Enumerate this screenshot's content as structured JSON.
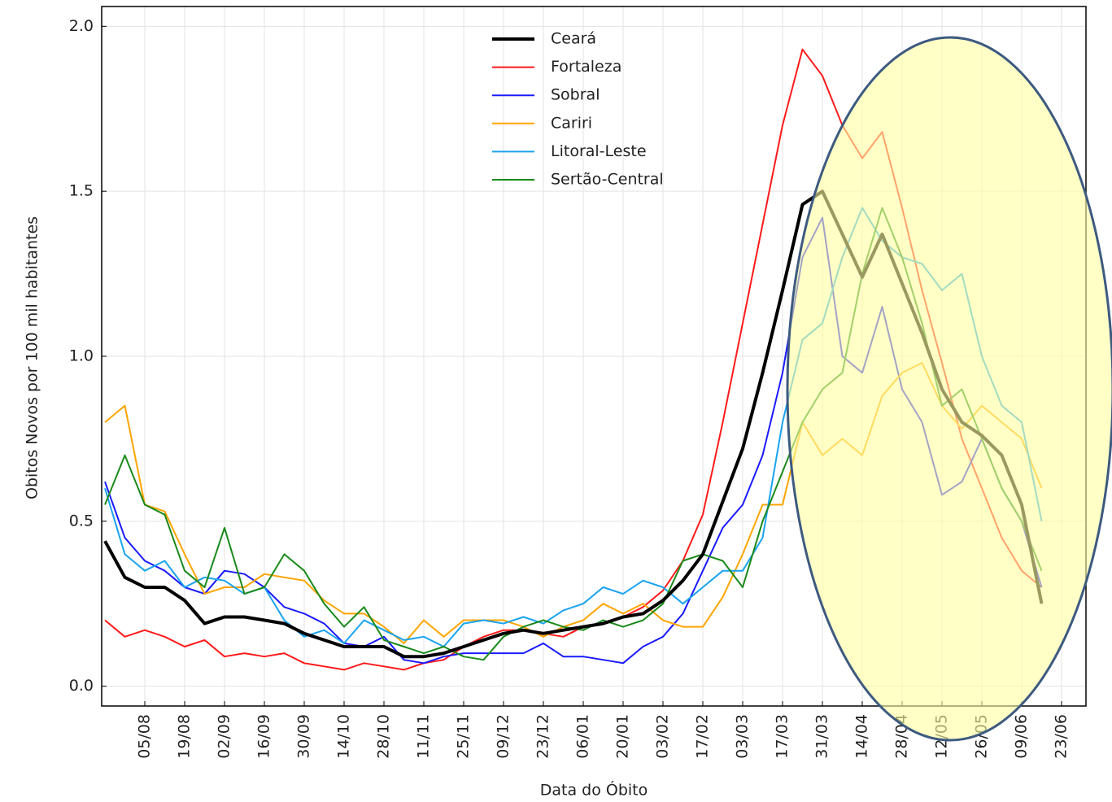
{
  "chart_data": {
    "type": "line",
    "x_label": "Data do Óbito",
    "y_label": "Obitos Novos por 100 mil habitantes",
    "categories": [
      null,
      null,
      "05/08",
      null,
      "19/08",
      null,
      "02/09",
      null,
      "16/09",
      null,
      "30/09",
      null,
      "14/10",
      null,
      "28/10",
      null,
      "11/11",
      null,
      "25/11",
      null,
      "09/12",
      null,
      "23/12",
      null,
      "06/01",
      null,
      "20/01",
      null,
      "03/02",
      null,
      "17/02",
      null,
      "03/03",
      null,
      "17/03",
      null,
      "31/03",
      null,
      "14/04",
      null,
      "28/04",
      null,
      "12/05",
      null,
      "26/05",
      null,
      "09/06",
      null,
      "23/06"
    ],
    "series": [
      {
        "name": "Ceará",
        "color": "#000000",
        "values": [
          0.44,
          0.33,
          0.3,
          0.3,
          0.26,
          0.19,
          0.21,
          0.21,
          0.2,
          0.19,
          0.16,
          0.14,
          0.12,
          0.12,
          0.12,
          0.09,
          0.09,
          0.1,
          0.12,
          0.14,
          0.16,
          0.17,
          0.16,
          0.17,
          0.18,
          0.19,
          0.21,
          0.22,
          0.26,
          0.32,
          0.4,
          0.56,
          0.72,
          0.95,
          1.2,
          1.46,
          1.5,
          1.37,
          1.24,
          1.37,
          1.22,
          1.07,
          0.9,
          0.8,
          0.76,
          0.7,
          0.55,
          0.25,
          null
        ]
      },
      {
        "name": "Fortaleza",
        "color": "#ff1a1a",
        "values": [
          0.2,
          0.15,
          0.17,
          0.15,
          0.12,
          0.14,
          0.09,
          0.1,
          0.09,
          0.1,
          0.07,
          0.06,
          0.05,
          0.07,
          0.06,
          0.05,
          0.07,
          0.08,
          0.12,
          0.15,
          0.17,
          0.17,
          0.16,
          0.15,
          0.18,
          0.19,
          0.21,
          0.24,
          0.29,
          0.38,
          0.52,
          0.8,
          1.1,
          1.4,
          1.7,
          1.93,
          1.85,
          1.7,
          1.6,
          1.68,
          1.45,
          1.2,
          0.98,
          0.75,
          0.6,
          0.45,
          0.35,
          0.3,
          null
        ]
      },
      {
        "name": "Sobral",
        "color": "#1a1aff",
        "values": [
          0.62,
          0.45,
          0.38,
          0.35,
          0.3,
          0.28,
          0.35,
          0.34,
          0.3,
          0.24,
          0.22,
          0.19,
          0.13,
          0.12,
          0.15,
          0.08,
          0.07,
          0.09,
          0.1,
          0.1,
          0.1,
          0.1,
          0.13,
          0.09,
          0.09,
          0.08,
          0.07,
          0.12,
          0.15,
          0.22,
          0.35,
          0.48,
          0.55,
          0.7,
          0.95,
          1.3,
          1.42,
          1.0,
          0.95,
          1.15,
          0.9,
          0.8,
          0.58,
          0.62,
          0.75,
          0.6,
          0.5,
          0.3,
          null
        ]
      },
      {
        "name": "Cariri",
        "color": "#ffa500",
        "values": [
          0.8,
          0.85,
          0.55,
          0.53,
          0.4,
          0.28,
          0.3,
          0.3,
          0.34,
          0.33,
          0.32,
          0.26,
          0.22,
          0.22,
          0.18,
          0.13,
          0.2,
          0.15,
          0.2,
          0.2,
          0.2,
          0.18,
          0.15,
          0.18,
          0.2,
          0.25,
          0.22,
          0.25,
          0.2,
          0.18,
          0.18,
          0.27,
          0.4,
          0.55,
          0.55,
          0.8,
          0.7,
          0.75,
          0.7,
          0.88,
          0.95,
          0.98,
          0.85,
          0.78,
          0.85,
          0.8,
          0.75,
          0.6,
          null
        ]
      },
      {
        "name": "Litoral-Leste",
        "color": "#1aa3ef",
        "values": [
          0.6,
          0.4,
          0.35,
          0.38,
          0.3,
          0.33,
          0.32,
          0.28,
          0.3,
          0.2,
          0.15,
          0.17,
          0.13,
          0.2,
          0.17,
          0.14,
          0.15,
          0.12,
          0.19,
          0.2,
          0.19,
          0.21,
          0.19,
          0.23,
          0.25,
          0.3,
          0.28,
          0.32,
          0.3,
          0.25,
          0.3,
          0.35,
          0.35,
          0.45,
          0.8,
          1.05,
          1.1,
          1.3,
          1.45,
          1.35,
          1.3,
          1.28,
          1.2,
          1.25,
          1.0,
          0.85,
          0.8,
          0.5,
          null
        ]
      },
      {
        "name": "Sertão-Central",
        "color": "#1a8a1a",
        "values": [
          0.55,
          0.7,
          0.55,
          0.52,
          0.35,
          0.3,
          0.48,
          0.28,
          0.3,
          0.4,
          0.35,
          0.25,
          0.18,
          0.24,
          0.14,
          0.12,
          0.1,
          0.12,
          0.09,
          0.08,
          0.15,
          0.18,
          0.2,
          0.18,
          0.17,
          0.2,
          0.18,
          0.2,
          0.25,
          0.38,
          0.4,
          0.38,
          0.3,
          0.5,
          0.65,
          0.8,
          0.9,
          0.95,
          1.25,
          1.45,
          1.3,
          1.1,
          0.85,
          0.9,
          0.75,
          0.6,
          0.5,
          0.35,
          null
        ]
      }
    ],
    "ylim": [
      -0.06,
      2.06
    ],
    "yticks": [
      {
        "value": 0,
        "label": "0.0"
      },
      0.5,
      {
        "value": 1,
        "label": "1.0"
      },
      1.5,
      {
        "value": 2,
        "label": "2.0"
      }
    ],
    "grid": true,
    "legend": "upper center"
  }
}
